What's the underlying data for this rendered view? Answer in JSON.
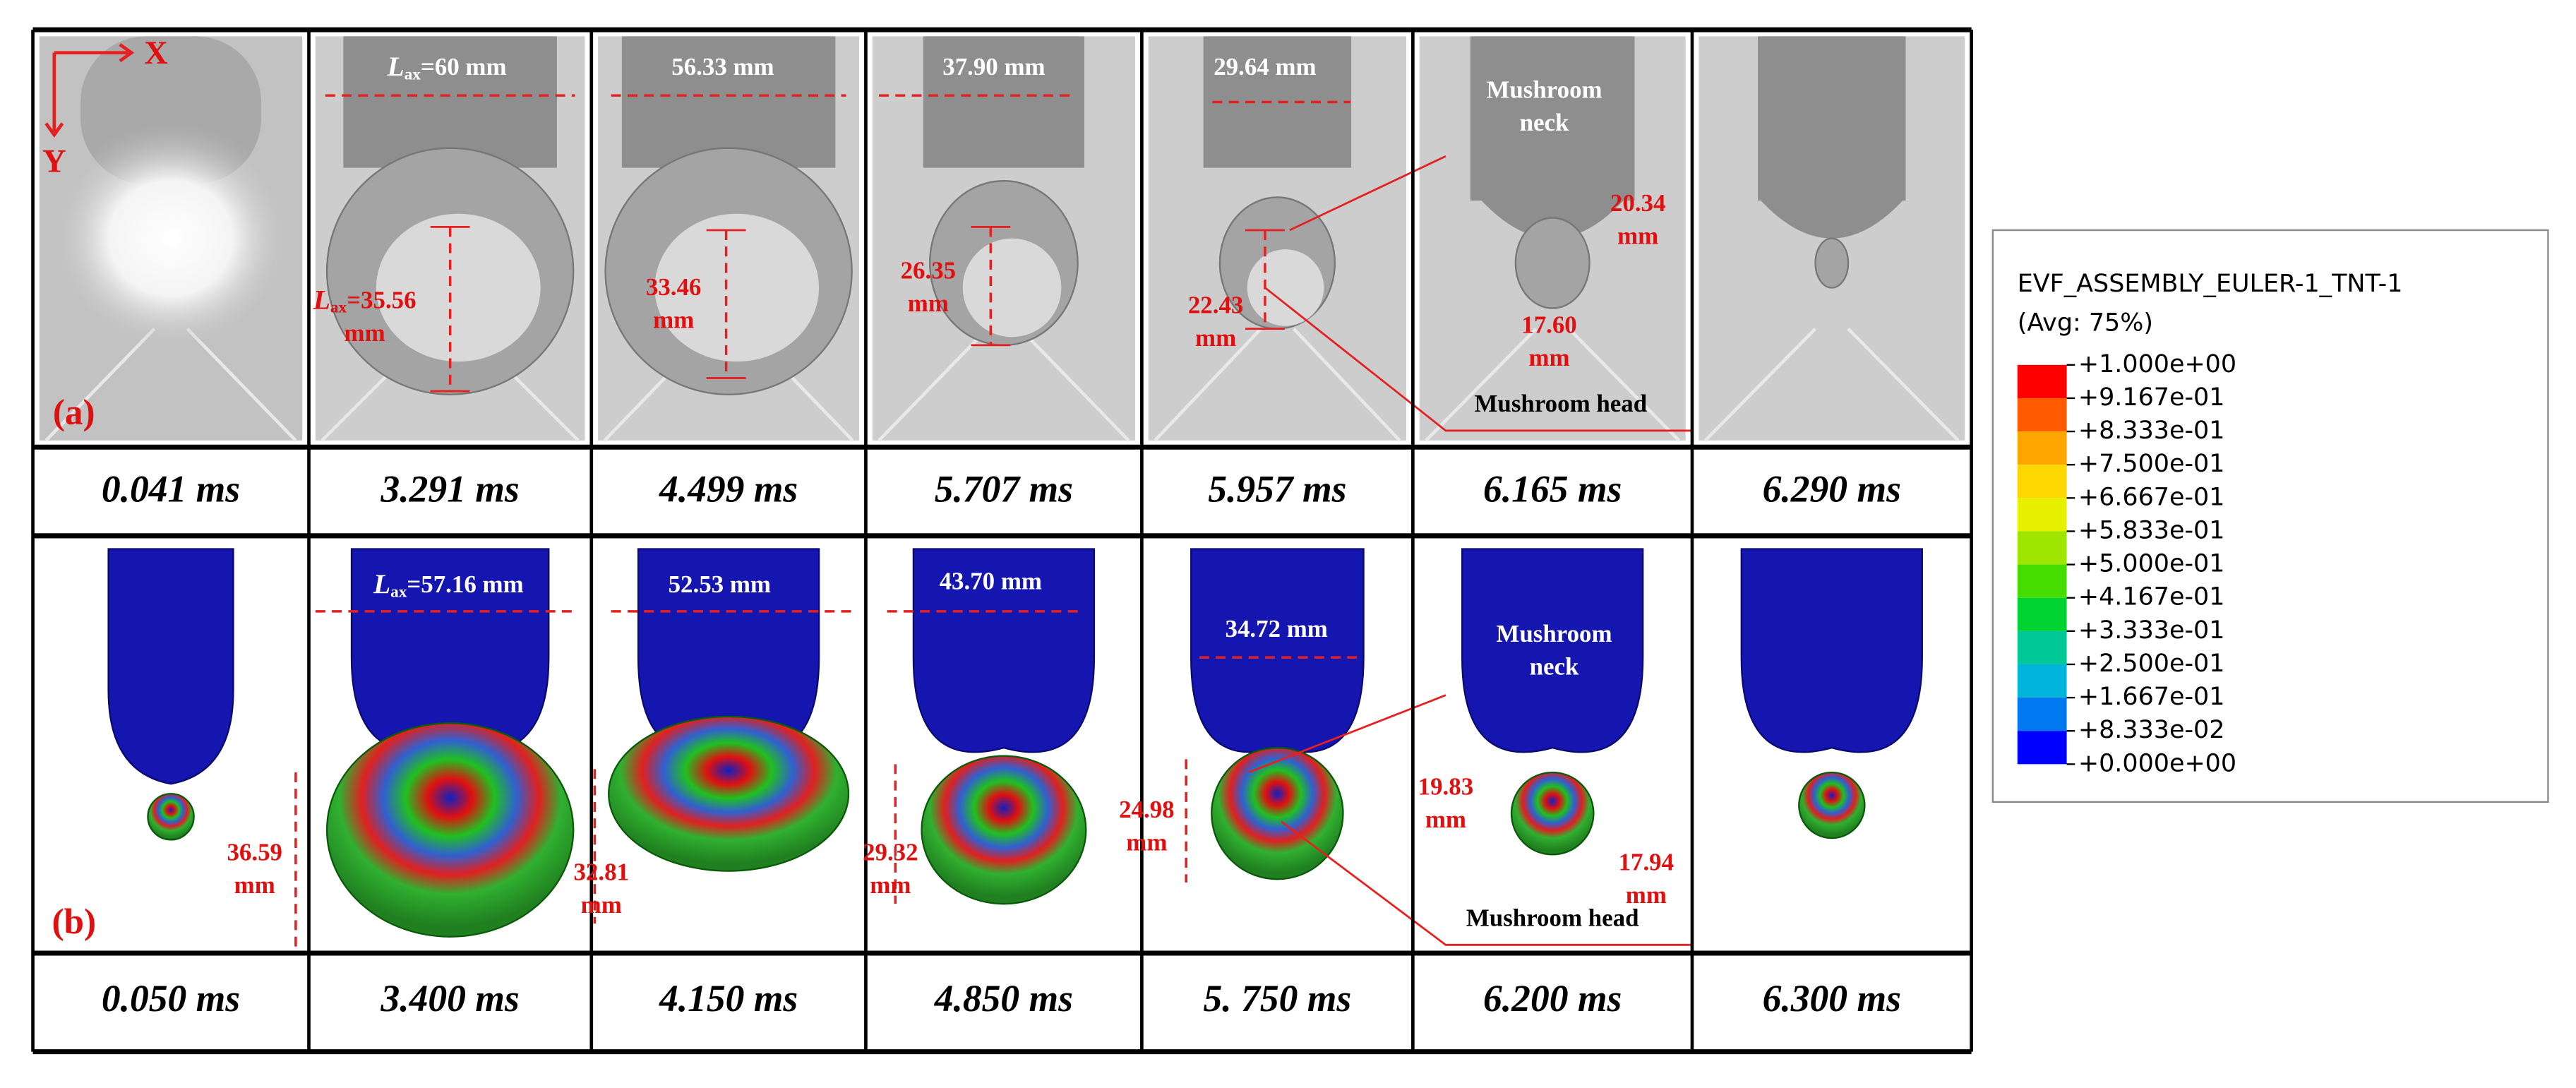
{
  "row_a": {
    "label": "(a)",
    "axes": [
      "X",
      "Y"
    ],
    "width_labels": [
      {
        "symbol": "L",
        "subscript": "ax",
        "text": "=60 mm"
      },
      "56.33 mm",
      "37.90 mm",
      "29.64 mm"
    ],
    "height_labels": [
      [
        {
          "symbol": "L",
          "subscript": "ax",
          "text": "=35.56"
        },
        "mm"
      ],
      [
        "33.46",
        "mm"
      ],
      [
        "26.35",
        "mm"
      ],
      [
        "22.43",
        "mm"
      ]
    ],
    "neck_label": [
      "Mushroom",
      "neck"
    ],
    "neck_width": [
      "20.34",
      "mm"
    ],
    "head_width": [
      "17.60",
      "mm"
    ],
    "head_label": "Mushroom head",
    "times": [
      "0.041 ms",
      "3.291 ms",
      "4.499 ms",
      "5.707 ms",
      "5.957 ms",
      "6.165 ms",
      "6.290 ms"
    ]
  },
  "row_b": {
    "label": "(b)",
    "width_labels": [
      {
        "symbol": "L",
        "subscript": "ax",
        "text": "=57.16 mm"
      },
      "52.53 mm",
      "43.70 mm",
      "34.72 mm"
    ],
    "height_labels": [
      [
        "36.59",
        "mm"
      ],
      [
        "32.81",
        "mm"
      ],
      [
        "29.32",
        "mm"
      ],
      [
        "24.98",
        "mm"
      ]
    ],
    "neck_label": [
      "Mushroom",
      "neck"
    ],
    "neck_width": [
      "19.83",
      "mm"
    ],
    "head_width": [
      "17.94",
      "mm"
    ],
    "head_label": "Mushroom head",
    "times": [
      "0.050 ms",
      "3.400 ms",
      "4.150 ms",
      "4.850 ms",
      "5. 750 ms",
      "6.200 ms",
      "6.300 ms"
    ]
  },
  "legend": {
    "title": [
      "EVF_ASSEMBLY_EULER-1_TNT-1",
      "(Avg: 75%)"
    ],
    "labels": [
      "+1.000e+00",
      "+9.167e-01",
      "+8.333e-01",
      "+7.500e-01",
      "+6.667e-01",
      "+5.833e-01",
      "+5.000e-01",
      "+4.167e-01",
      "+3.333e-01",
      "+2.500e-01",
      "+1.667e-01",
      "+8.333e-02",
      "+0.000e+00"
    ],
    "colors": [
      "#ff0000",
      "#ff5a00",
      "#ffa500",
      "#ffd700",
      "#e6f000",
      "#9ee600",
      "#46dc00",
      "#00d232",
      "#00c896",
      "#00b4dc",
      "#0078f0",
      "#0000ff"
    ]
  }
}
